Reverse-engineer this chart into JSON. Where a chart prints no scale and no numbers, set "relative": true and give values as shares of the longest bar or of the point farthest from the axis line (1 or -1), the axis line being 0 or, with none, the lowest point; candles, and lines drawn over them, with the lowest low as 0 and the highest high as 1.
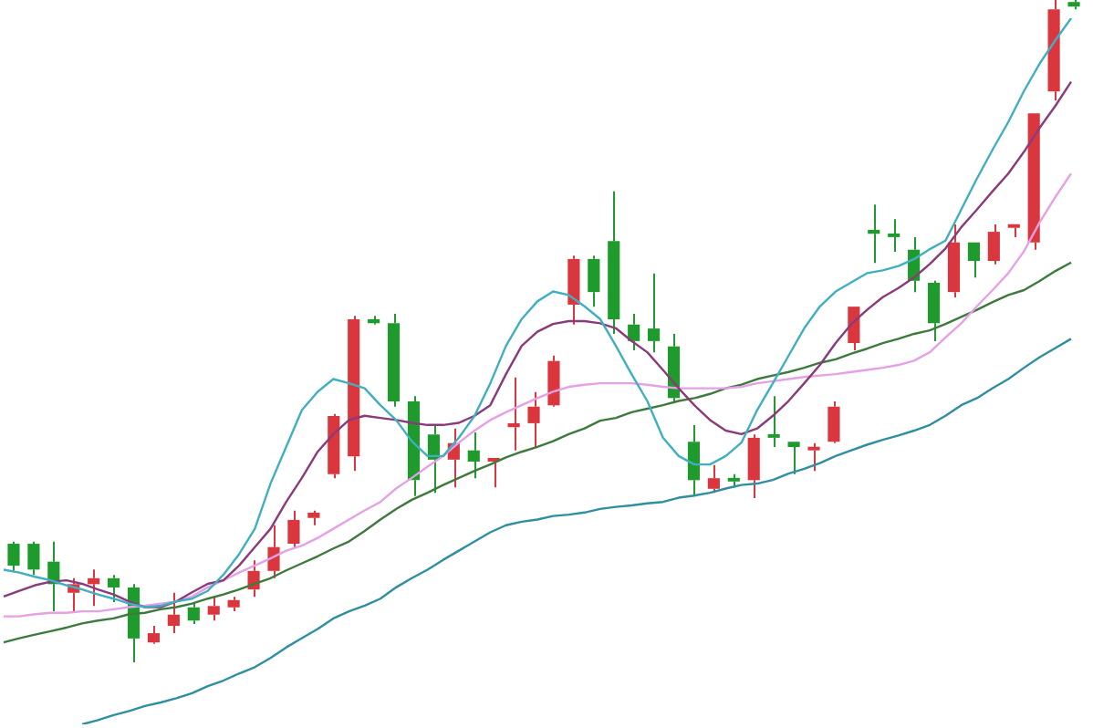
{
  "chart_data": [
    {
      "type": "line",
      "relative": true,
      "categories": [
        null,
        null,
        null,
        null,
        null,
        null,
        null,
        null,
        null,
        null,
        null,
        null,
        null,
        null,
        null,
        null,
        null,
        null,
        null,
        null,
        null,
        null,
        null,
        null,
        null,
        null,
        null,
        null,
        null,
        null,
        null,
        null,
        null,
        null,
        null,
        null,
        null,
        null,
        null,
        null,
        null,
        null,
        null,
        null,
        null,
        null,
        null,
        null,
        null,
        null,
        null,
        null,
        null,
        null,
        null,
        null,
        null,
        null,
        null,
        null,
        null,
        null,
        null,
        null,
        null,
        null,
        null,
        null,
        null
      ],
      "series": [
        {
          "color": "#40b0c0",
          "values": [
            0.219,
            0.215,
            0.209,
            0.204,
            0.197,
            0.191,
            0.184,
            0.178,
            0.171,
            0.166,
            0.168,
            0.174,
            0.178,
            0.189,
            0.212,
            0.241,
            0.277,
            0.341,
            0.393,
            0.445,
            0.471,
            0.489,
            0.483,
            0.476,
            0.452,
            0.431,
            0.401,
            0.38,
            0.38,
            0.406,
            0.437,
            0.483,
            0.536,
            0.574,
            0.599,
            0.613,
            0.608,
            0.592,
            0.574,
            0.536,
            0.496,
            0.458,
            0.406,
            0.38,
            0.368,
            0.368,
            0.38,
            0.399,
            0.445,
            0.483,
            0.522,
            0.561,
            0.592,
            0.613,
            0.626,
            0.639,
            0.643,
            0.649,
            0.659,
            0.673,
            0.685,
            0.729,
            0.773,
            0.814,
            0.853,
            0.897,
            0.936,
            0.969,
            1.0
          ]
        },
        {
          "color": "#8b3a7a",
          "values": [
            0.181,
            0.189,
            0.197,
            0.202,
            0.204,
            0.199,
            0.191,
            0.184,
            0.174,
            0.166,
            0.166,
            0.174,
            0.187,
            0.199,
            0.204,
            0.225,
            0.251,
            0.277,
            0.315,
            0.349,
            0.386,
            0.411,
            0.431,
            0.437,
            0.434,
            0.431,
            0.427,
            0.424,
            0.424,
            0.427,
            0.437,
            0.452,
            0.496,
            0.536,
            0.556,
            0.567,
            0.571,
            0.571,
            0.568,
            0.561,
            0.543,
            0.527,
            0.502,
            0.476,
            0.452,
            0.431,
            0.416,
            0.411,
            0.419,
            0.437,
            0.458,
            0.483,
            0.509,
            0.54,
            0.567,
            0.587,
            0.605,
            0.618,
            0.633,
            0.652,
            0.674,
            0.704,
            0.729,
            0.755,
            0.78,
            0.811,
            0.845,
            0.876,
            0.91
          ]
        },
        {
          "color": "#e6a0e6",
          "values": [
            0.153,
            0.153,
            0.156,
            0.158,
            0.158,
            0.16,
            0.16,
            0.163,
            0.166,
            0.168,
            0.171,
            0.174,
            0.181,
            0.194,
            0.204,
            0.215,
            0.225,
            0.235,
            0.246,
            0.253,
            0.264,
            0.277,
            0.29,
            0.303,
            0.315,
            0.334,
            0.349,
            0.365,
            0.38,
            0.399,
            0.416,
            0.431,
            0.442,
            0.452,
            0.462,
            0.471,
            0.478,
            0.481,
            0.483,
            0.483,
            0.483,
            0.481,
            0.478,
            0.476,
            0.476,
            0.476,
            0.476,
            0.478,
            0.483,
            0.486,
            0.489,
            0.492,
            0.494,
            0.496,
            0.499,
            0.502,
            0.505,
            0.509,
            0.515,
            0.527,
            0.548,
            0.568,
            0.592,
            0.615,
            0.639,
            0.67,
            0.711,
            0.747,
            0.78
          ]
        },
        {
          "color": "#3d7a3d",
          "values": [
            0.116,
            0.122,
            0.127,
            0.132,
            0.137,
            0.143,
            0.147,
            0.15,
            0.156,
            0.158,
            0.163,
            0.166,
            0.171,
            0.178,
            0.184,
            0.191,
            0.199,
            0.207,
            0.218,
            0.228,
            0.238,
            0.249,
            0.259,
            0.274,
            0.29,
            0.305,
            0.318,
            0.328,
            0.339,
            0.349,
            0.359,
            0.368,
            0.378,
            0.386,
            0.393,
            0.401,
            0.411,
            0.419,
            0.43,
            0.434,
            0.442,
            0.447,
            0.452,
            0.458,
            0.462,
            0.468,
            0.476,
            0.481,
            0.489,
            0.494,
            0.499,
            0.505,
            0.512,
            0.517,
            0.525,
            0.532,
            0.54,
            0.546,
            0.553,
            0.558,
            0.567,
            0.577,
            0.587,
            0.598,
            0.608,
            0.615,
            0.628,
            0.642,
            0.654
          ]
        },
        {
          "color": "#2f8fa0",
          "values": [
            null,
            null,
            null,
            null,
            null,
            0,
            0.006,
            0.013,
            0.019,
            0.026,
            0.031,
            0.037,
            0.044,
            0.054,
            0.062,
            0.072,
            0.081,
            0.094,
            0.109,
            0.122,
            0.135,
            0.15,
            0.16,
            0.168,
            0.178,
            0.194,
            0.207,
            0.219,
            0.233,
            0.246,
            0.259,
            0.272,
            0.282,
            0.287,
            0.29,
            0.295,
            0.297,
            0.3,
            0.305,
            0.308,
            0.31,
            0.313,
            0.315,
            0.321,
            0.324,
            0.328,
            0.334,
            0.339,
            0.341,
            0.346,
            0.355,
            0.362,
            0.37,
            0.38,
            0.388,
            0.396,
            0.403,
            0.409,
            0.416,
            0.424,
            0.437,
            0.452,
            0.462,
            0.476,
            0.489,
            0.505,
            0.52,
            0.533,
            0.546
          ]
        }
      ]
    },
    {
      "type": "candlestick",
      "relative": true,
      "categories": [
        null,
        null,
        null,
        null,
        null,
        null,
        null,
        null,
        null,
        null,
        null,
        null,
        null,
        null,
        null,
        null,
        null,
        null,
        null,
        null,
        null,
        null,
        null,
        null,
        null,
        null,
        null,
        null,
        null,
        null,
        null,
        null,
        null,
        null,
        null,
        null,
        null,
        null,
        null,
        null,
        null,
        null,
        null,
        null,
        null,
        null,
        null,
        null,
        null,
        null,
        null,
        null,
        null,
        null
      ],
      "ohlc": [
        [
          0.179,
          0.182,
          0.138,
          0.146
        ],
        [
          0.179,
          0.182,
          0.132,
          0.14
        ],
        [
          0.152,
          0.182,
          0.077,
          0.118
        ],
        [
          0.105,
          0.127,
          0.077,
          0.118
        ],
        [
          0.118,
          0.14,
          0.085,
          0.127
        ],
        [
          0.127,
          0.132,
          0.091,
          0.113
        ],
        [
          0.113,
          0.118,
          0,
          0.036
        ],
        [
          0.03,
          0.055,
          0.028,
          0.044
        ],
        [
          0.055,
          0.105,
          0.044,
          0.072
        ],
        [
          0.083,
          0.091,
          0.058,
          0.063
        ],
        [
          0.072,
          0.099,
          0.063,
          0.085
        ],
        [
          0.083,
          0.099,
          0.077,
          0.094
        ],
        [
          0.11,
          0.154,
          0.099,
          0.138
        ],
        [
          0.138,
          0.207,
          0.127,
          0.174
        ],
        [
          0.179,
          0.229,
          0.174,
          0.215
        ],
        [
          0.218,
          0.229,
          0.207,
          0.226
        ],
        [
          0.284,
          0.375,
          0.278,
          0.372
        ],
        [
          0.311,
          0.523,
          0.289,
          0.518
        ],
        [
          0.518,
          0.523,
          0.51,
          0.512
        ],
        [
          0.512,
          0.526,
          0.386,
          0.394
        ],
        [
          0.394,
          0.402,
          0.251,
          0.275
        ],
        [
          0.344,
          0.358,
          0.256,
          0.306
        ],
        [
          0.306,
          0.353,
          0.264,
          0.331
        ],
        [
          0.32,
          0.347,
          0.278,
          0.303
        ],
        [
          0.303,
          0.306,
          0.264,
          0.306
        ],
        [
          0.355,
          0.43,
          0.32,
          0.361
        ],
        [
          0.361,
          0.408,
          0.325,
          0.386
        ],
        [
          0.388,
          0.463,
          0.386,
          0.455
        ],
        [
          0.54,
          0.614,
          0.51,
          0.609
        ],
        [
          0.609,
          0.614,
          0.537,
          0.559
        ],
        [
          0.636,
          0.711,
          0.496,
          0.518
        ],
        [
          0.51,
          0.526,
          0.471,
          0.485
        ],
        [
          0.504,
          0.587,
          0.468,
          0.485
        ],
        [
          0.477,
          0.496,
          0.394,
          0.399
        ],
        [
          0.333,
          0.358,
          0.251,
          0.275
        ],
        [
          0.262,
          0.298,
          0.256,
          0.278
        ],
        [
          0.275,
          0.284,
          0.264,
          0.273
        ],
        [
          0.275,
          0.344,
          0.248,
          0.339
        ],
        [
          0.344,
          0.402,
          0.325,
          0.339
        ],
        [
          0.333,
          0.333,
          0.284,
          0.325
        ],
        [
          0.32,
          0.331,
          0.289,
          0.325
        ],
        [
          0.333,
          0.394,
          0.331,
          0.386
        ],
        [
          0.482,
          0.537,
          0.471,
          0.537
        ],
        [
          0.653,
          0.691,
          0.603,
          0.647
        ],
        [
          0.647,
          0.669,
          0.62,
          0.642
        ],
        [
          0.623,
          0.642,
          0.559,
          0.576
        ],
        [
          0.573,
          0.576,
          0.485,
          0.512
        ],
        [
          0.559,
          0.661,
          0.551,
          0.634
        ],
        [
          0.634,
          0.634,
          0.581,
          0.606
        ],
        [
          0.606,
          0.661,
          0.601,
          0.65
        ],
        [
          0.656,
          0.661,
          0.642,
          0.661
        ],
        [
          0.634,
          0.829,
          0.623,
          0.829
        ],
        [
          0.862,
          1,
          0.848,
          0.986
        ],
        [
          0.997,
          1,
          0.986,
          0.99
        ]
      ],
      "colors": [
        "#1f9b2e",
        "#1f9b2e",
        "#1f9b2e",
        "#d9363e",
        "#d9363e",
        "#1f9b2e",
        "#1f9b2e",
        "#d9363e",
        "#d9363e",
        "#1f9b2e",
        "#d9363e",
        "#d9363e",
        "#d9363e",
        "#d9363e",
        "#d9363e",
        "#d9363e",
        "#d9363e",
        "#d9363e",
        "#1f9b2e",
        "#1f9b2e",
        "#1f9b2e",
        "#1f9b2e",
        "#d9363e",
        "#1f9b2e",
        "#d9363e",
        "#d9363e",
        "#d9363e",
        "#d9363e",
        "#d9363e",
        "#1f9b2e",
        "#1f9b2e",
        "#1f9b2e",
        "#1f9b2e",
        "#1f9b2e",
        "#1f9b2e",
        "#d9363e",
        "#1f9b2e",
        "#d9363e",
        "#1f9b2e",
        "#1f9b2e",
        "#d9363e",
        "#d9363e",
        "#d9363e",
        "#1f9b2e",
        "#1f9b2e",
        "#1f9b2e",
        "#1f9b2e",
        "#d9363e",
        "#1f9b2e",
        "#d9363e",
        "#d9363e",
        "#d9363e",
        "#d9363e",
        "#1f9b2e"
      ]
    }
  ]
}
